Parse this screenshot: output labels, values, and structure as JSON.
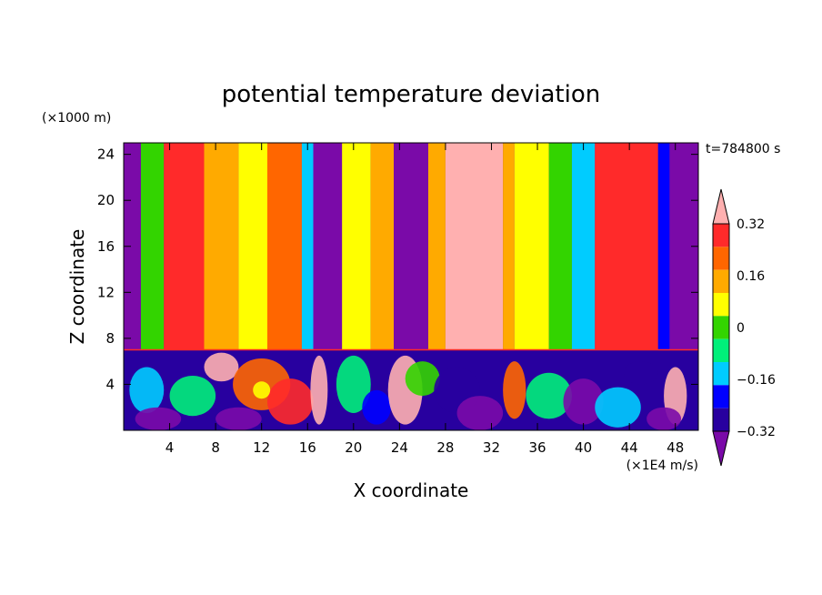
{
  "chart_data": {
    "type": "heatmap",
    "title": "potential temperature deviation",
    "xlabel": "X coordinate",
    "ylabel": "Z coordinate",
    "x_units": "(×1E4 m/s)",
    "y_units": "(×1000 m)",
    "time_label": "t=784800 s",
    "xlim": [
      0,
      50
    ],
    "ylim": [
      0,
      25
    ],
    "x_ticks": [
      4,
      8,
      12,
      16,
      20,
      24,
      28,
      32,
      36,
      40,
      44,
      48
    ],
    "y_ticks": [
      4,
      8,
      12,
      16,
      20,
      24
    ],
    "colorbar": {
      "levels": [
        -0.4,
        -0.32,
        -0.24,
        -0.16,
        -0.08,
        0,
        0.08,
        0.16,
        0.24,
        0.32,
        0.4
      ],
      "labels": [
        "0.32",
        "0.16",
        "0",
        "−0.16",
        "−0.32"
      ],
      "label_values": [
        0.32,
        0.16,
        0,
        -0.16,
        -0.32
      ],
      "colors": [
        "#7a0aa8",
        "#28009f",
        "#0000ff",
        "#00ccff",
        "#00f07a",
        "#33d400",
        "#ffff00",
        "#ffaa00",
        "#ff6600",
        "#ff2a2a",
        "#ffb0b0"
      ],
      "extend": "both"
    },
    "stratosphere_base": 7,
    "upper_columns": [
      {
        "x": [
          0.0,
          1.5
        ],
        "level": 0
      },
      {
        "x": [
          1.5,
          3.5
        ],
        "level": 5
      },
      {
        "x": [
          3.5,
          7.0
        ],
        "level": 9
      },
      {
        "x": [
          7.0,
          10.0
        ],
        "level": 7
      },
      {
        "x": [
          10.0,
          12.5
        ],
        "level": 6
      },
      {
        "x": [
          12.5,
          15.5
        ],
        "level": 8
      },
      {
        "x": [
          15.5,
          16.5
        ],
        "level": 3
      },
      {
        "x": [
          16.5,
          19.0
        ],
        "level": 0
      },
      {
        "x": [
          19.0,
          21.5
        ],
        "level": 6
      },
      {
        "x": [
          21.5,
          23.5
        ],
        "level": 7
      },
      {
        "x": [
          23.5,
          26.5
        ],
        "level": 0
      },
      {
        "x": [
          26.5,
          28.0
        ],
        "level": 7
      },
      {
        "x": [
          28.0,
          33.0
        ],
        "level": 10
      },
      {
        "x": [
          33.0,
          34.0
        ],
        "level": 7
      },
      {
        "x": [
          34.0,
          37.0
        ],
        "level": 6
      },
      {
        "x": [
          37.0,
          39.0
        ],
        "level": 5
      },
      {
        "x": [
          39.0,
          41.0
        ],
        "level": 3
      },
      {
        "x": [
          41.0,
          46.5
        ],
        "level": 9
      },
      {
        "x": [
          46.5,
          47.5
        ],
        "level": 2
      },
      {
        "x": [
          47.5,
          50.0
        ],
        "level": 0
      }
    ],
    "lower_patches": [
      {
        "x": 2,
        "z": 3.5,
        "w": 3.0,
        "h": 4.0,
        "level": 3
      },
      {
        "x": 6,
        "z": 3.0,
        "w": 4.0,
        "h": 3.5,
        "level": 4
      },
      {
        "x": 8.5,
        "z": 5.5,
        "w": 3.0,
        "h": 2.5,
        "level": 10
      },
      {
        "x": 12,
        "z": 4.0,
        "w": 5.0,
        "h": 4.5,
        "level": 8
      },
      {
        "x": 14.5,
        "z": 2.5,
        "w": 4.0,
        "h": 4.0,
        "level": 9
      },
      {
        "x": 12,
        "z": 3.5,
        "w": 1.5,
        "h": 1.5,
        "level": 6
      },
      {
        "x": 3,
        "z": 1.0,
        "w": 4.0,
        "h": 2.0,
        "level": 0
      },
      {
        "x": 10,
        "z": 1.0,
        "w": 4.0,
        "h": 2.0,
        "level": 0
      },
      {
        "x": 17,
        "z": 3.5,
        "w": 1.5,
        "h": 6.0,
        "level": 10
      },
      {
        "x": 20,
        "z": 4.0,
        "w": 3.0,
        "h": 5.0,
        "level": 4
      },
      {
        "x": 22,
        "z": 2.0,
        "w": 2.5,
        "h": 3.0,
        "level": 2
      },
      {
        "x": 24.5,
        "z": 3.5,
        "w": 3.0,
        "h": 6.0,
        "level": 10
      },
      {
        "x": 26,
        "z": 4.5,
        "w": 3.0,
        "h": 3.0,
        "level": 5
      },
      {
        "x": 29,
        "z": 3.5,
        "w": 4.0,
        "h": 4.0,
        "level": 1
      },
      {
        "x": 31,
        "z": 1.5,
        "w": 4.0,
        "h": 3.0,
        "level": 0
      },
      {
        "x": 34,
        "z": 3.5,
        "w": 2.0,
        "h": 5.0,
        "level": 8
      },
      {
        "x": 37,
        "z": 3.0,
        "w": 4.0,
        "h": 4.0,
        "level": 4
      },
      {
        "x": 40,
        "z": 2.5,
        "w": 3.5,
        "h": 4.0,
        "level": 0
      },
      {
        "x": 43,
        "z": 2.0,
        "w": 4.0,
        "h": 3.5,
        "level": 3
      },
      {
        "x": 45,
        "z": 5.0,
        "w": 3.0,
        "h": 2.0,
        "level": 1
      },
      {
        "x": 48,
        "z": 3.0,
        "w": 2.0,
        "h": 5.0,
        "level": 10
      },
      {
        "x": 47,
        "z": 1.0,
        "w": 3.0,
        "h": 2.0,
        "level": 0
      }
    ]
  }
}
